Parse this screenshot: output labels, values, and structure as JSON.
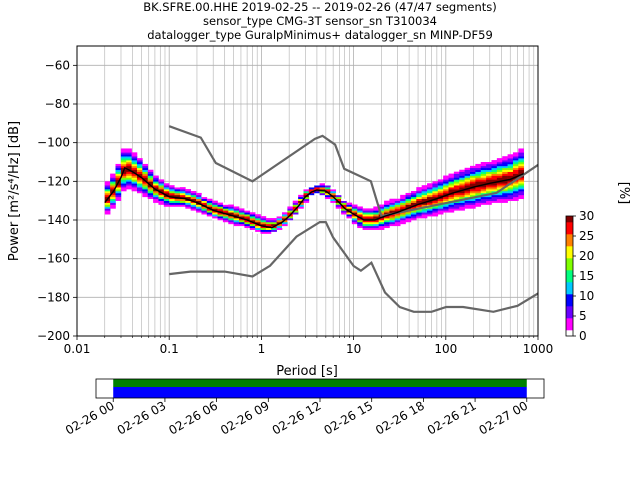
{
  "chart_data": {
    "type": "heatmap",
    "title_lines": [
      "BK.SFRE.00.HHE   2019-02-25 -- 2019-02-26  (47/47 segments)",
      "sensor_type CMG-3T sensor_sn T310034",
      "datalogger_type GuralpMinimus+ datalogger_sn MINP-DF59"
    ],
    "xlabel": "Period [s]",
    "ylabel": "Power [m²/s⁴/Hz] [dB]",
    "xscale": "log",
    "xlim": [
      0.01,
      1000
    ],
    "ylim": [
      -200,
      -50
    ],
    "x_ticks": [
      {
        "value": 0.01,
        "label": "0.01"
      },
      {
        "value": 0.1,
        "label": "0.1"
      },
      {
        "value": 1,
        "label": "1"
      },
      {
        "value": 10,
        "label": "10"
      },
      {
        "value": 100,
        "label": "100"
      },
      {
        "value": 1000,
        "label": "1000"
      }
    ],
    "y_ticks": [
      {
        "value": -60,
        "label": "−60"
      },
      {
        "value": -80,
        "label": "−80"
      },
      {
        "value": -100,
        "label": "−100"
      },
      {
        "value": -120,
        "label": "−120"
      },
      {
        "value": -140,
        "label": "−140"
      },
      {
        "value": -160,
        "label": "−160"
      },
      {
        "value": -180,
        "label": "−180"
      },
      {
        "value": -200,
        "label": "−200"
      }
    ],
    "grid": true,
    "colorbar": {
      "label": "[%]",
      "min": 0,
      "max": 30,
      "ticks": [
        {
          "value": 0,
          "label": "0"
        },
        {
          "value": 5,
          "label": "5"
        },
        {
          "value": 10,
          "label": "10"
        },
        {
          "value": 15,
          "label": "15"
        },
        {
          "value": 20,
          "label": "20"
        },
        {
          "value": 25,
          "label": "25"
        },
        {
          "value": 30,
          "label": "30"
        }
      ],
      "colors": [
        "#ffffff",
        "#ff00ff",
        "#6a00ff",
        "#0000ff",
        "#00c8ff",
        "#00ff80",
        "#80ff00",
        "#ffff00",
        "#ff8000",
        "#ff0000",
        "#800000"
      ]
    },
    "nhnm": [
      [
        0.1,
        -91.5
      ],
      [
        0.22,
        -97.4
      ],
      [
        0.32,
        -110.5
      ],
      [
        0.8,
        -120
      ],
      [
        3.8,
        -98
      ],
      [
        4.6,
        -96.5
      ],
      [
        6.3,
        -101
      ],
      [
        7.9,
        -113.5
      ],
      [
        15.4,
        -120
      ],
      [
        20,
        -138
      ],
      [
        354.8,
        -126
      ],
      [
        1000,
        -111.5
      ]
    ],
    "nlnm": [
      [
        0.1,
        -168
      ],
      [
        0.17,
        -166.7
      ],
      [
        0.4,
        -166.7
      ],
      [
        0.8,
        -169.2
      ],
      [
        1.24,
        -163.7
      ],
      [
        2.4,
        -148.6
      ],
      [
        4.3,
        -141.1
      ],
      [
        5,
        -141.1
      ],
      [
        6,
        -149
      ],
      [
        10,
        -163.8
      ],
      [
        12,
        -166.2
      ],
      [
        15.6,
        -162.1
      ],
      [
        21.9,
        -177.5
      ],
      [
        31.6,
        -185
      ],
      [
        45,
        -187.5
      ],
      [
        70,
        -187.5
      ],
      [
        101,
        -185
      ],
      [
        154,
        -185
      ],
      [
        328,
        -187.5
      ],
      [
        600,
        -184.4
      ],
      [
        1000,
        -178
      ]
    ],
    "mean_curve": [
      [
        0.02,
        -131
      ],
      [
        0.025,
        -125
      ],
      [
        0.03,
        -118
      ],
      [
        0.033,
        -113
      ],
      [
        0.04,
        -115
      ],
      [
        0.05,
        -118
      ],
      [
        0.07,
        -124
      ],
      [
        0.1,
        -128
      ],
      [
        0.15,
        -129
      ],
      [
        0.2,
        -131
      ],
      [
        0.3,
        -135
      ],
      [
        0.5,
        -138
      ],
      [
        0.7,
        -140
      ],
      [
        1,
        -143
      ],
      [
        1.3,
        -144
      ],
      [
        1.7,
        -141
      ],
      [
        2,
        -138
      ],
      [
        2.5,
        -133
      ],
      [
        3,
        -128
      ],
      [
        3.5,
        -125.5
      ],
      [
        4,
        -124.5
      ],
      [
        5,
        -125
      ],
      [
        6,
        -128
      ],
      [
        7,
        -131
      ],
      [
        8,
        -134
      ],
      [
        10,
        -137
      ],
      [
        13,
        -140
      ],
      [
        17,
        -140
      ],
      [
        22,
        -138
      ],
      [
        30,
        -136
      ],
      [
        50,
        -132
      ],
      [
        80,
        -129
      ],
      [
        120,
        -126
      ],
      [
        200,
        -123
      ],
      [
        300,
        -121
      ],
      [
        500,
        -119
      ],
      [
        700,
        -116
      ]
    ],
    "band": [
      [
        0.02,
        -131,
        7
      ],
      [
        0.025,
        -125,
        8
      ],
      [
        0.03,
        -118,
        9
      ],
      [
        0.033,
        -113,
        10
      ],
      [
        0.04,
        -115,
        9
      ],
      [
        0.05,
        -118,
        8
      ],
      [
        0.07,
        -124,
        6
      ],
      [
        0.1,
        -128,
        5
      ],
      [
        0.15,
        -129,
        4
      ],
      [
        0.2,
        -131,
        4
      ],
      [
        0.3,
        -135,
        4
      ],
      [
        0.5,
        -138,
        4
      ],
      [
        0.7,
        -140,
        4
      ],
      [
        1,
        -143,
        4
      ],
      [
        1.3,
        -144,
        3
      ],
      [
        1.7,
        -141,
        3
      ],
      [
        2,
        -138,
        3
      ],
      [
        2.5,
        -133,
        3
      ],
      [
        3,
        -128,
        3
      ],
      [
        3.5,
        -125.5,
        2
      ],
      [
        4,
        -124.5,
        2
      ],
      [
        5,
        -125,
        3
      ],
      [
        6,
        -128,
        3
      ],
      [
        7,
        -131,
        3
      ],
      [
        8,
        -134,
        3
      ],
      [
        10,
        -137,
        4
      ],
      [
        13,
        -140,
        5
      ],
      [
        17,
        -140,
        5
      ],
      [
        22,
        -138,
        6
      ],
      [
        30,
        -136,
        6
      ],
      [
        50,
        -132,
        7
      ],
      [
        80,
        -129,
        8
      ],
      [
        120,
        -126,
        9
      ],
      [
        200,
        -123,
        10
      ],
      [
        300,
        -121,
        10
      ],
      [
        500,
        -119,
        11
      ],
      [
        700,
        -116,
        12
      ]
    ],
    "timeline": {
      "tick_labels": [
        "02-26 00",
        "02-26 03",
        "02-26 06",
        "02-26 09",
        "02-26 12",
        "02-26 15",
        "02-26 18",
        "02-26 21",
        "02-27 00"
      ],
      "range_hours": [
        -1,
        25
      ],
      "coverage_hours": [
        0,
        24
      ],
      "data_color": "#0000ff",
      "gap_color": "#008000"
    }
  }
}
